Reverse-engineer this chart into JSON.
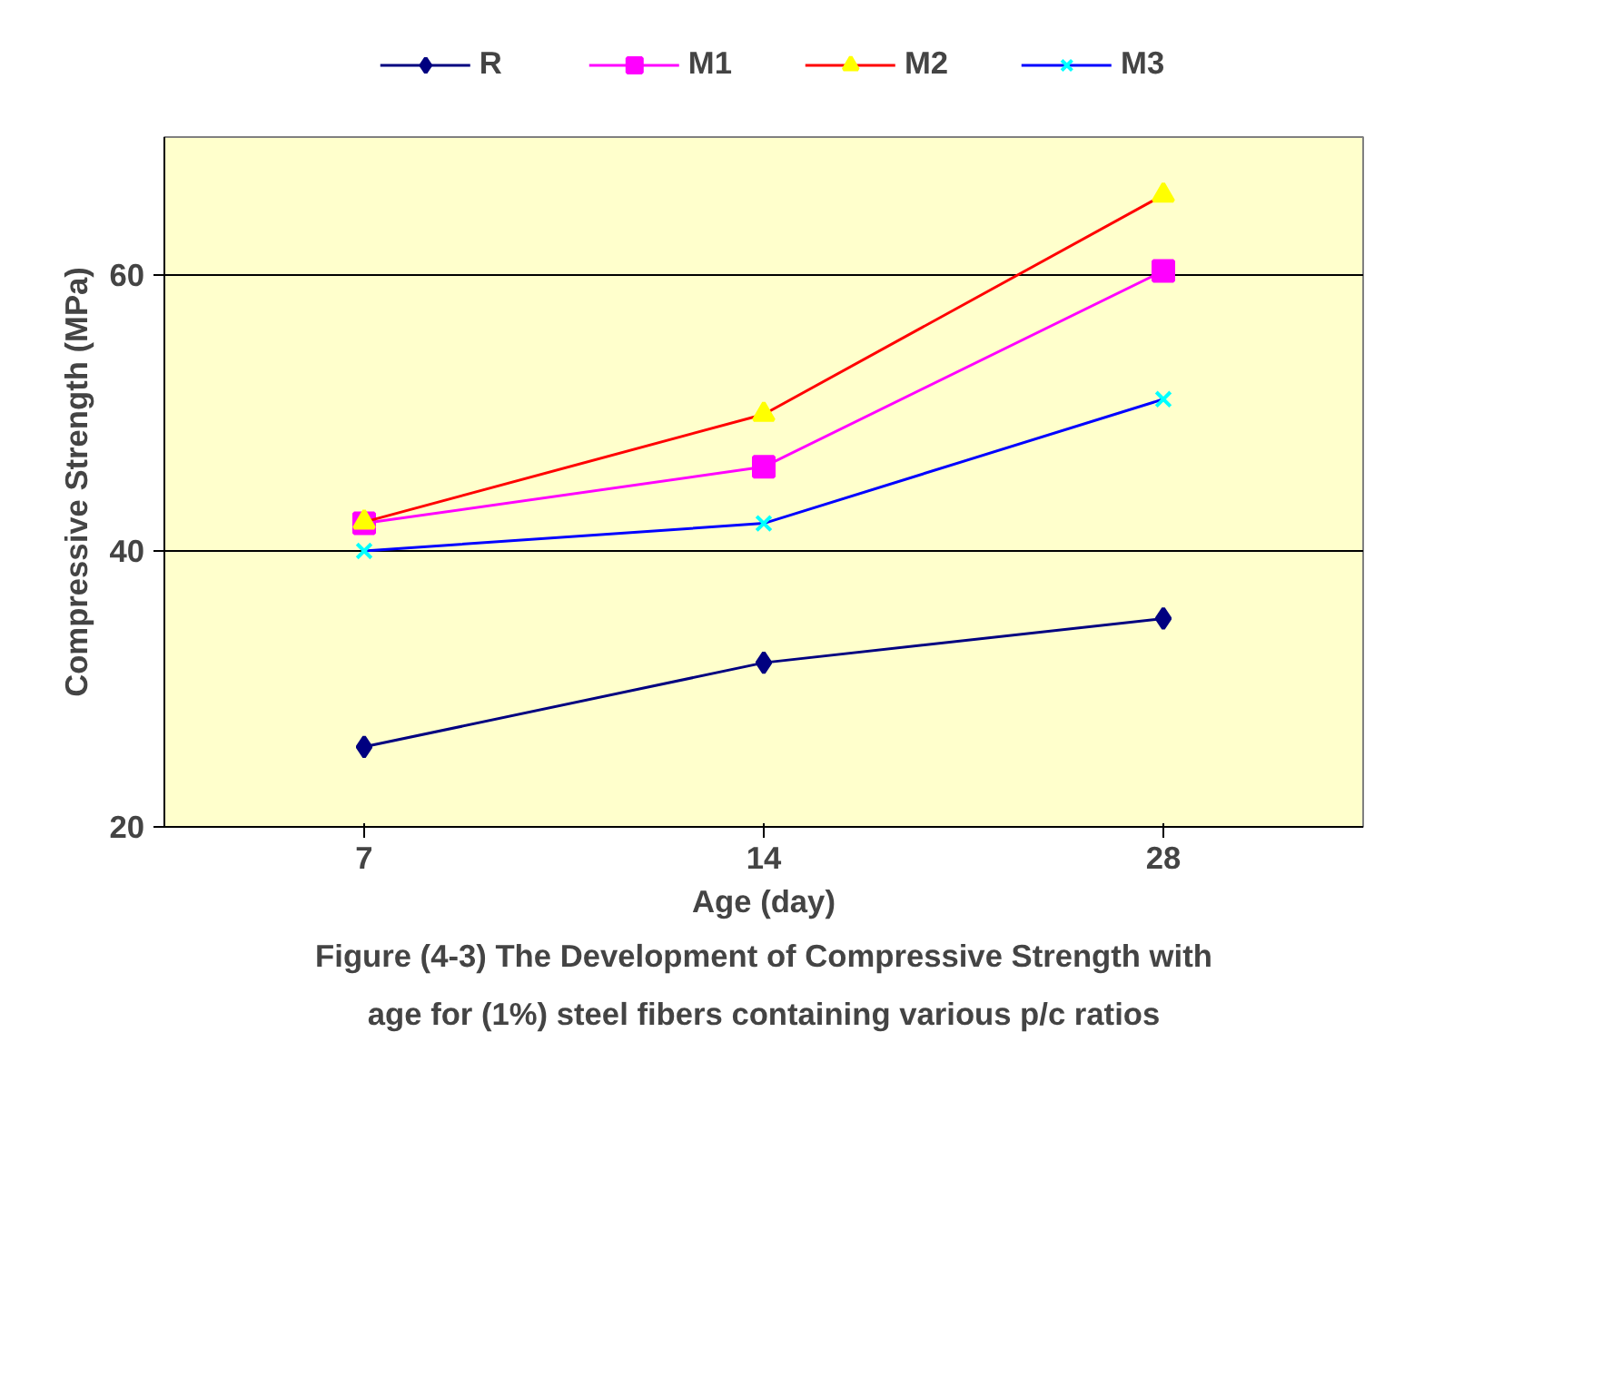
{
  "chart_data": {
    "type": "line",
    "xlabel": "Age (day)",
    "ylabel": "Compressive Strength (MPa)",
    "categories": [
      "7",
      "14",
      "28"
    ],
    "series": [
      {
        "name": "R",
        "color": "#000080",
        "colors": [
          "#000080",
          "#000080",
          "#000080"
        ],
        "marker": "diamond",
        "values": [
          25.8,
          31.9,
          35.1
        ]
      },
      {
        "name": "M1",
        "color": "#ff00ff",
        "colors": [
          "#ff00ff",
          "#ff00ff",
          "#ff00ff"
        ],
        "marker": "square",
        "values": [
          42,
          46.1,
          60.3
        ]
      },
      {
        "name": "M2",
        "color": "#ff0000",
        "colors": [
          "#ffff00",
          "#ffff00",
          "#ffff00"
        ],
        "marker": "triangle",
        "values": [
          42.1,
          49.9,
          65.8
        ]
      },
      {
        "name": "M3",
        "color": "#0000ff",
        "colors": [
          "#00ffff",
          "#00ffff",
          "#00ffff"
        ],
        "marker": "cross",
        "values": [
          40,
          42,
          51
        ]
      }
    ],
    "ylim": [
      20,
      70
    ],
    "yticks": [
      20,
      40,
      60
    ],
    "grid": "y",
    "legend": "top",
    "annotations": [
      "Figure (4-3) The Development of Compressive Strength with\nage for (1%) steel fibers containing various p/c ratios"
    ]
  }
}
